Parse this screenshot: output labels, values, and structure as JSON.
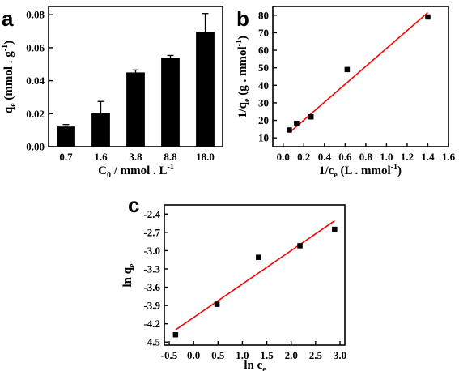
{
  "colors": {
    "axis": "#000000",
    "marker": "#000000",
    "fit_line": "#ff0000",
    "bar": "#000000"
  },
  "chart_data": [
    {
      "panel": "a",
      "type": "bar",
      "xlabel_main": "C",
      "xlabel_sub": "0",
      "xlabel_rest": " / mmol . L",
      "xlabel_sup": "-1",
      "ylabel_main": "q",
      "ylabel_sub": "e",
      "ylabel_rest": " (mmol . g",
      "ylabel_sup": "-1",
      "ylabel_close": ")",
      "categories": [
        "0.7",
        "1.6",
        "3.8",
        "8.8",
        "18.0"
      ],
      "values": [
        0.0122,
        0.0202,
        0.045,
        0.0538,
        0.0697
      ],
      "errors": [
        0.0012,
        0.0072,
        0.0015,
        0.0015,
        0.011
      ],
      "ylim": [
        0,
        0.085
      ],
      "yticks": [
        "0.00",
        "0.02",
        "0.04",
        "0.06",
        "0.08"
      ],
      "ytick_values": [
        0,
        0.02,
        0.04,
        0.06,
        0.08
      ],
      "grid": false
    },
    {
      "panel": "b",
      "type": "scatter",
      "xlabel_main": "1/c",
      "xlabel_sub": "e",
      "xlabel_rest": " (L . mmol",
      "xlabel_sup": "-1",
      "xlabel_close": ")",
      "ylabel_main": "1/q",
      "ylabel_sub": "e",
      "ylabel_rest": " (g . mmol",
      "ylabel_sup": "-1",
      "ylabel_close": ")",
      "x": [
        0.06,
        0.13,
        0.27,
        0.62,
        1.4
      ],
      "y": [
        14.5,
        18.3,
        22.0,
        49.0,
        79.0
      ],
      "fit": {
        "x": [
          0.06,
          1.4
        ],
        "y": [
          13.0,
          81.5
        ]
      },
      "xlim": [
        -0.1,
        1.6
      ],
      "ylim": [
        5,
        85
      ],
      "xticks": [
        "0.0",
        "0.2",
        "0.4",
        "0.6",
        "0.8",
        "1.0",
        "1.2",
        "1.4",
        "1.6"
      ],
      "xtick_values": [
        0,
        0.2,
        0.4,
        0.6,
        0.8,
        1.0,
        1.2,
        1.4,
        1.6
      ],
      "yticks": [
        "10",
        "20",
        "30",
        "40",
        "50",
        "60",
        "70",
        "80"
      ],
      "ytick_values": [
        10,
        20,
        30,
        40,
        50,
        60,
        70,
        80
      ],
      "grid": false
    },
    {
      "panel": "c",
      "type": "scatter",
      "xlabel_main": "ln c",
      "xlabel_sub": "e",
      "ylabel_main": "ln q",
      "ylabel_sub": "e",
      "x": [
        -0.37,
        0.48,
        1.33,
        2.18,
        2.89
      ],
      "y": [
        -4.38,
        -3.88,
        -3.11,
        -2.92,
        -2.65
      ],
      "fit": {
        "x": [
          -0.37,
          2.89
        ],
        "y": [
          -4.3,
          -2.51
        ]
      },
      "xlim": [
        -0.6,
        3.1
      ],
      "ylim": [
        -4.55,
        -2.25
      ],
      "xticks": [
        "-0.5",
        "0.0",
        "0.5",
        "1.0",
        "1.5",
        "2.0",
        "2.5",
        "3.0"
      ],
      "xtick_values": [
        -0.5,
        0,
        0.5,
        1.0,
        1.5,
        2.0,
        2.5,
        3.0
      ],
      "yticks": [
        "-2.4",
        "-2.7",
        "-3.0",
        "-3.3",
        "-3.6",
        "-3.9",
        "-4.2",
        "-4.5"
      ],
      "ytick_values": [
        -2.4,
        -2.7,
        -3.0,
        -3.3,
        -3.6,
        -3.9,
        -4.2,
        -4.5
      ],
      "grid": false
    }
  ]
}
